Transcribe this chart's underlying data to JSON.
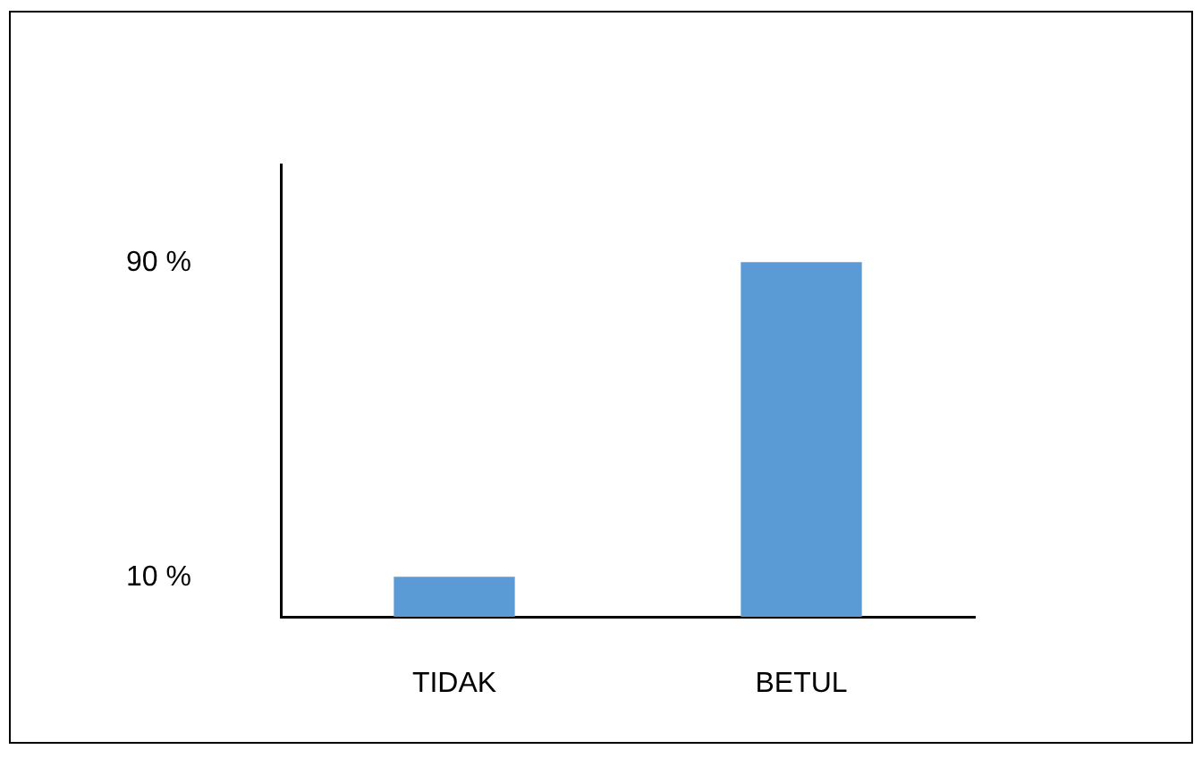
{
  "chart_data": {
    "type": "bar",
    "categories": [
      "TIDAK",
      "BETUL"
    ],
    "values": [
      10,
      90
    ],
    "color": "#5b9bd5",
    "ylim": [
      0,
      115
    ],
    "yticks": [
      {
        "value": 10,
        "label": "10 %"
      },
      {
        "value": 90,
        "label": "90 %"
      }
    ],
    "grid": false,
    "legend": false
  }
}
